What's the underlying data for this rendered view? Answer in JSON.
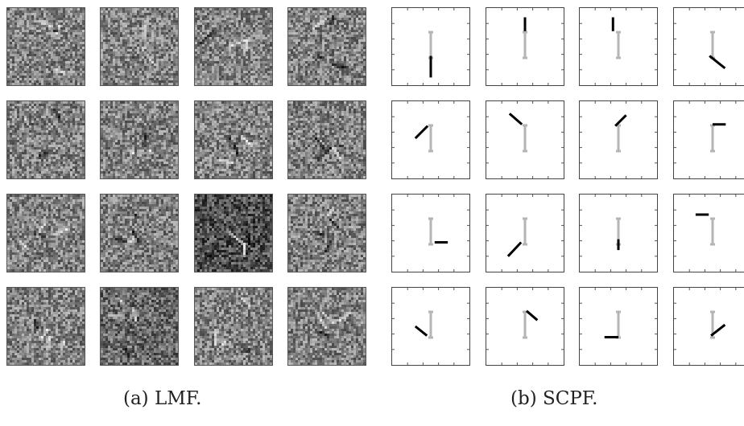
{
  "figure": {
    "left_panel": {
      "caption": "(a) LMF.",
      "description_rows": 4,
      "description_cols": 4
    },
    "right_panel": {
      "caption": "(b) SCPF.",
      "description_rows": 4,
      "description_cols": 4,
      "templates": [
        {
          "seg": [
            [
              0.5,
              0.62
            ],
            [
              0.5,
              0.9
            ]
          ]
        },
        {
          "seg": [
            [
              0.5,
              0.12
            ],
            [
              0.5,
              0.3
            ]
          ]
        },
        {
          "seg": [
            [
              0.43,
              0.12
            ],
            [
              0.43,
              0.3
            ]
          ]
        },
        {
          "seg": [
            [
              0.46,
              0.62
            ],
            [
              0.66,
              0.78
            ]
          ]
        },
        {
          "seg": [
            [
              0.3,
              0.48
            ],
            [
              0.46,
              0.32
            ]
          ]
        },
        {
          "seg": [
            [
              0.3,
              0.16
            ],
            [
              0.46,
              0.3
            ]
          ]
        },
        {
          "seg": [
            [
              0.46,
              0.32
            ],
            [
              0.6,
              0.18
            ]
          ]
        },
        {
          "seg": [
            [
              0.5,
              0.3
            ],
            [
              0.67,
              0.3
            ]
          ]
        },
        {
          "seg": [
            [
              0.55,
              0.62
            ],
            [
              0.72,
              0.62
            ]
          ]
        },
        {
          "seg": [
            [
              0.28,
              0.8
            ],
            [
              0.45,
              0.62
            ]
          ]
        },
        {
          "seg": [
            [
              0.5,
              0.58
            ],
            [
              0.5,
              0.72
            ]
          ]
        },
        {
          "seg": [
            [
              0.28,
              0.26
            ],
            [
              0.45,
              0.26
            ]
          ]
        },
        {
          "seg": [
            [
              0.3,
              0.5
            ],
            [
              0.45,
              0.62
            ]
          ]
        },
        {
          "seg": [
            [
              0.52,
              0.3
            ],
            [
              0.66,
              0.42
            ]
          ]
        },
        {
          "seg": [
            [
              0.32,
              0.64
            ],
            [
              0.5,
              0.64
            ]
          ]
        },
        {
          "seg": [
            [
              0.48,
              0.62
            ],
            [
              0.66,
              0.48
            ]
          ]
        }
      ]
    }
  }
}
